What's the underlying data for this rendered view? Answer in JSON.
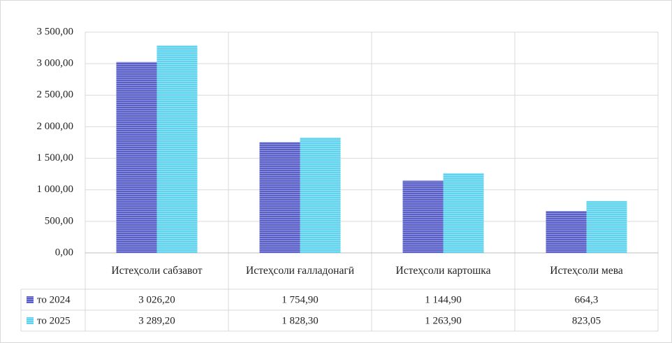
{
  "chart_data": {
    "type": "bar",
    "categories": [
      "Истеҳсоли сабзавот",
      "Истеҳсоли ғалладонагӣ",
      "Истеҳсоли картошка",
      "Истеҳсоли мева"
    ],
    "series": [
      {
        "name": "то 2024",
        "color": "#5a5fc8",
        "values": [
          3026.2,
          1754.9,
          1144.9,
          664.3
        ],
        "value_labels": [
          "3 026,20",
          "1 754,90",
          "1 144,90",
          "664,3"
        ]
      },
      {
        "name": "то 2025",
        "color": "#5fd2ee",
        "values": [
          3289.2,
          1828.3,
          1263.9,
          823.05
        ],
        "value_labels": [
          "3 289,20",
          "1 828,30",
          "1 263,90",
          "823,05"
        ]
      }
    ],
    "ylim": [
      0,
      3500
    ],
    "yticks": [
      {
        "value": 0,
        "label": "0,00"
      },
      {
        "value": 500,
        "label": "500,00"
      },
      {
        "value": 1000,
        "label": "1 000,00"
      },
      {
        "value": 1500,
        "label": "1 500,00"
      },
      {
        "value": 2000,
        "label": "2 000,00"
      },
      {
        "value": 2500,
        "label": "2 500,00"
      },
      {
        "value": 3000,
        "label": "3 000,00"
      },
      {
        "value": 3500,
        "label": "3 500,00"
      }
    ],
    "grid": true
  }
}
